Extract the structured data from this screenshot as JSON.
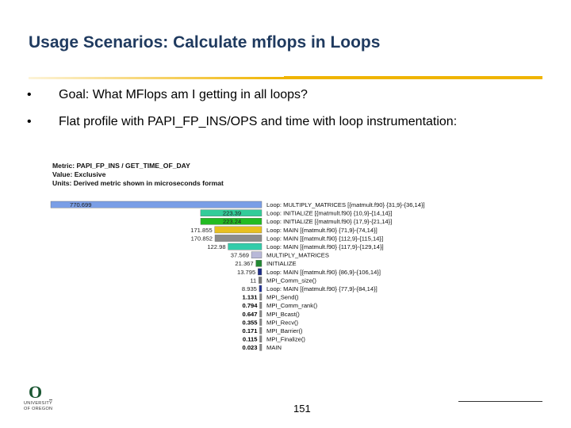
{
  "slide": {
    "title": "Usage Scenarios: Calculate mflops in Loops",
    "bullets": [
      {
        "marker": "•",
        "text": "Goal: What MFlops am I getting in all loops?"
      },
      {
        "marker": "•",
        "text": "Flat profile with PAPI_FP_INS/OPS and time with loop instrumentation:"
      }
    ],
    "page_number": "151",
    "logo": {
      "letter": "O",
      "line1": "UNIVERSITY",
      "line2": "OF OREGON"
    }
  },
  "profile": {
    "metric_line": "Metric: PAPI_FP_INS / GET_TIME_OF_DAY",
    "value_line": "Value: Exclusive",
    "units_line": "Units: Derived metric shown in microseconds format"
  },
  "colors": {
    "title": "#1f3a5f",
    "gold_rule": "#f0b400"
  },
  "chart_data": {
    "type": "bar",
    "orientation": "horizontal",
    "rows": [
      {
        "value": 770.699,
        "label_text": "770.699",
        "name": "Loop: MULTIPLY_MATRICES [{matmult.f90} {31,9}-{36,14}]",
        "color": "#7a9ee6"
      },
      {
        "value": 223.39,
        "label_text": "223.39",
        "name": "Loop: INITIALIZE [{matmult.f90} {10,9}-{14,14}]",
        "color": "#33cc99"
      },
      {
        "value": 223.24,
        "label_text": "223.24",
        "name": "Loop: INITIALIZE [{matmult.f90} {17,9}-{21,14}]",
        "color": "#22bb22"
      },
      {
        "value": 171.855,
        "label_text": "171.855",
        "name": "Loop: MAIN [{matmult.f90} {71,9}-{74,14}]",
        "color": "#e8c020"
      },
      {
        "value": 170.852,
        "label_text": "170.852",
        "name": "Loop: MAIN [{matmult.f90} {112,9}-{115,14}]",
        "color": "#8c8c8c"
      },
      {
        "value": 122.98,
        "label_text": "122.98",
        "name": "Loop: MAIN [{matmult.f90} {117,9}-{129,14}]",
        "color": "#33ccaa"
      },
      {
        "value": 37.569,
        "label_text": "37.569",
        "name": "MULTIPLY_MATRICES",
        "color": "#b8b8d8"
      },
      {
        "value": 21.367,
        "label_text": "21.367",
        "name": "INITIALIZE",
        "color": "#228833"
      },
      {
        "value": 13.795,
        "label_text": "13.795",
        "name": "Loop: MAIN [{matmult.f90} {86,9}-{106,14}]",
        "color": "#1e2e88"
      },
      {
        "value": 11,
        "label_text": "11",
        "name": "MPI_Comm_size()",
        "color": "#777777"
      },
      {
        "value": 8.935,
        "label_text": "8.935",
        "name": "Loop: MAIN [{matmult.f90} {77,9}-{84,14}]",
        "color": "#223399"
      },
      {
        "value": 1.131,
        "label_text": "1.131",
        "name": "MPI_Send()",
        "color": "#888888"
      },
      {
        "value": 0.794,
        "label_text": "0.794",
        "name": "MPI_Comm_rank()",
        "color": "#888888"
      },
      {
        "value": 0.647,
        "label_text": "0.647",
        "name": "MPI_Bcast()",
        "color": "#888888"
      },
      {
        "value": 0.355,
        "label_text": "0.355",
        "name": "MPI_Recv()",
        "color": "#888888"
      },
      {
        "value": 0.171,
        "label_text": "0.171",
        "name": "MPI_Barrier()",
        "color": "#888888"
      },
      {
        "value": 0.115,
        "label_text": "0.115",
        "name": "MPI_Finalize()",
        "color": "#888888"
      },
      {
        "value": 0.023,
        "label_text": "0.023",
        "name": "MAIN",
        "color": "#888888"
      }
    ],
    "xlim": [
      0,
      770.699
    ]
  }
}
